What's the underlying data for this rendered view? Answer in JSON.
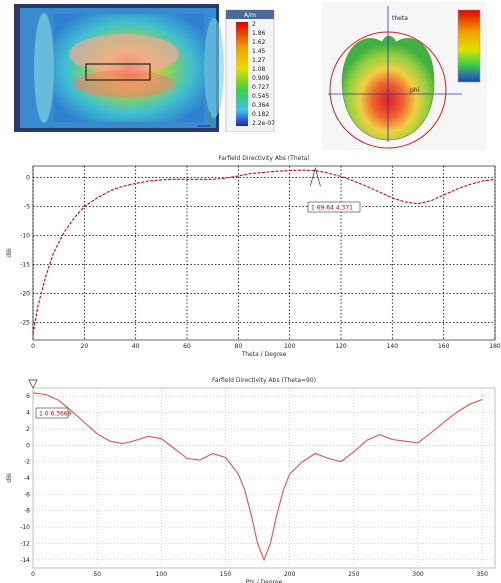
{
  "colors": {
    "accent": "#e00000",
    "grid": "#000000",
    "curve2": "#e85050"
  },
  "top_left": {
    "legend_title": "A/m",
    "legend_values": [
      "2",
      "1.86",
      "1.62",
      "1.45",
      "1.27",
      "1.08",
      "0.909",
      "0.727",
      "0.545",
      "0.364",
      "0.182",
      "2.2e-07"
    ]
  },
  "top_right": {
    "axis_top": "theta",
    "axis_right": "phi"
  },
  "chart_data": [
    {
      "type": "line",
      "title": "Farfield Directivity Abs (Theta)",
      "xlabel": "Theta / Degree",
      "ylabel": "dBi",
      "x_ticks": [
        "0",
        "20",
        "40",
        "60",
        "80",
        "100",
        "120",
        "140",
        "160",
        "180"
      ],
      "y_ticks": [
        "0",
        "-5",
        "-10",
        "-15",
        "-20",
        "-25"
      ],
      "xlim": [
        0,
        180
      ],
      "ylim": [
        -28,
        2
      ],
      "grid": "dotted",
      "annotation": "1  69.64  4.371",
      "x": [
        0,
        2,
        5,
        8,
        12,
        16,
        20,
        25,
        30,
        35,
        40,
        45,
        50,
        55,
        60,
        65,
        70,
        75,
        80,
        85,
        90,
        95,
        100,
        105,
        110,
        115,
        120,
        125,
        130,
        135,
        140,
        145,
        150,
        155,
        160,
        165,
        170,
        175,
        180
      ],
      "y": [
        -27,
        -22,
        -17,
        -13,
        -9.5,
        -7,
        -5,
        -3.5,
        -2.3,
        -1.5,
        -1,
        -0.6,
        -0.4,
        -0.3,
        -0.3,
        -0.3,
        -0.3,
        -0.1,
        0.3,
        0.7,
        0.9,
        1.1,
        1.2,
        1.3,
        1.2,
        0.8,
        0.2,
        -0.6,
        -1.5,
        -2.5,
        -3.5,
        -4.2,
        -4.5,
        -4.0,
        -3.0,
        -2.0,
        -1.2,
        -0.6,
        -0.3
      ]
    },
    {
      "type": "line",
      "title": "Farfield Directivity Abs (Theta=90)",
      "xlabel": "Phi / Degree",
      "ylabel": "dBi",
      "x_ticks": [
        "0",
        "50",
        "100",
        "150",
        "200",
        "250",
        "300",
        "350"
      ],
      "y_ticks": [
        "6",
        "4",
        "2",
        "0",
        "-2",
        "-4",
        "-6",
        "-8",
        "-10",
        "-12",
        "-14"
      ],
      "xlim": [
        0,
        360
      ],
      "ylim": [
        -15,
        7
      ],
      "grid": "dotted",
      "annotation": "1  0  6.3669",
      "x": [
        0,
        10,
        20,
        30,
        40,
        50,
        60,
        70,
        80,
        90,
        100,
        110,
        120,
        130,
        140,
        150,
        160,
        165,
        170,
        175,
        180,
        185,
        190,
        195,
        200,
        210,
        220,
        230,
        240,
        250,
        260,
        270,
        280,
        290,
        300,
        310,
        320,
        330,
        340,
        350
      ],
      "y": [
        6.4,
        6.2,
        5.5,
        4.2,
        2.8,
        1.4,
        0.5,
        0.2,
        0.6,
        1.1,
        0.8,
        -0.4,
        -1.6,
        -1.8,
        -1.0,
        -1.5,
        -3.5,
        -5.5,
        -8.5,
        -12,
        -14,
        -12,
        -8.5,
        -5.5,
        -3.5,
        -2.0,
        -1.0,
        -1.6,
        -2.0,
        -0.8,
        0.6,
        1.3,
        0.7,
        0.5,
        0.3,
        1.5,
        2.8,
        4.0,
        5.0,
        5.6
      ]
    }
  ]
}
